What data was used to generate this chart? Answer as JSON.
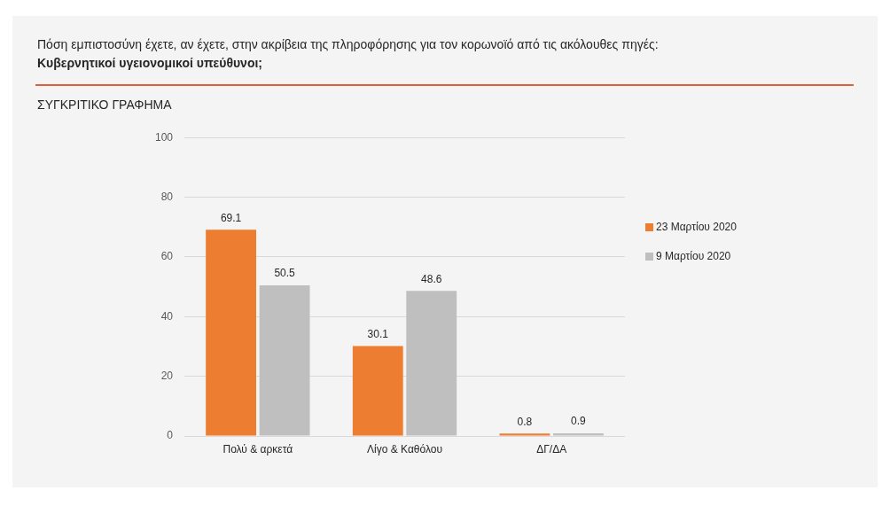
{
  "chart_data": {
    "type": "bar",
    "title": "Πόση εμπιστοσύνη έχετε, αν έχετε, στην ακρίβεια της πληροφόρησης για τον κορωνοϊό από τις ακόλουθες πηγές:",
    "subtitle": "Κυβερνητικοί υγειονομικοί υπεύθυνοι;",
    "annotations": [
      "ΣΥΓΚΡΙΤΙΚΟ ΓΡΑΦΗΜΑ"
    ],
    "categories": [
      "Πολύ & αρκετά",
      "Λίγο & Καθόλου",
      "ΔΓ/ΔΑ"
    ],
    "series": [
      {
        "name": "23 Μαρτίου 2020",
        "color": "#ed7d31",
        "values": [
          69.1,
          30.1,
          0.8
        ]
      },
      {
        "name": "9 Μαρτίου 2020",
        "color": "#bfbfbf",
        "values": [
          50.5,
          48.6,
          0.9
        ]
      }
    ],
    "ylim": [
      0,
      100
    ],
    "yticks": [
      0,
      20,
      40,
      60,
      80,
      100
    ],
    "grid": "y",
    "legend": "right",
    "data_labels": true
  }
}
